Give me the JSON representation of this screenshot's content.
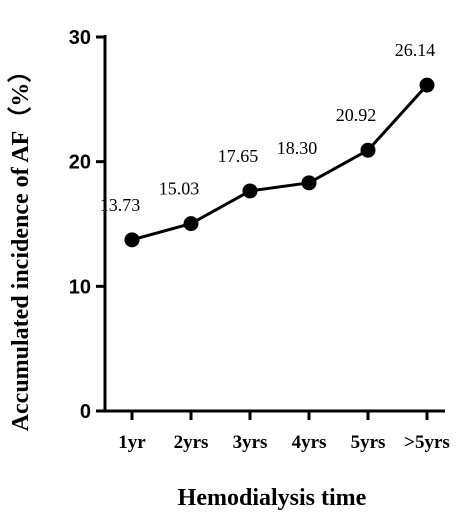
{
  "chart_data": {
    "type": "line",
    "categories": [
      "1yr",
      "2yrs",
      "3yrs",
      "4yrs",
      "5yrs",
      ">5yrs"
    ],
    "series": [
      {
        "values": [
          13.73,
          15.03,
          17.65,
          18.3,
          20.92,
          26.14
        ]
      }
    ],
    "data_labels": [
      "13.73",
      "15.03",
      "17.65",
      "18.30",
      "20.92",
      "26.14"
    ],
    "xlabel": "Hemodialysis time",
    "ylabel": "Accumulated incidence of AF（%）",
    "ylim": [
      0,
      30
    ],
    "yticks": [
      0,
      10,
      20,
      30
    ],
    "grid": false,
    "colors": {
      "line": "#000000",
      "marker": "#000000"
    }
  }
}
